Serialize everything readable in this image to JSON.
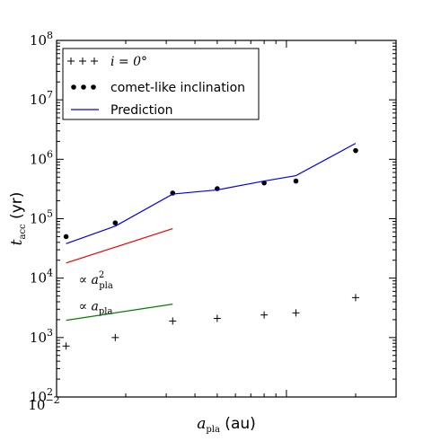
{
  "chart_data": {
    "type": "scatter",
    "xscale": "log",
    "yscale": "log",
    "xlabel": "a_pla (au)",
    "xlabel_main": "a",
    "xlabel_sub": "pla",
    "xlabel_unit": " (au)",
    "ylabel": "t_acc (yr)",
    "ylabel_main": "t",
    "ylabel_sub": "acc",
    "ylabel_unit": " (yr)",
    "xlim": [
      0.01,
      0.3
    ],
    "ylim": [
      100,
      100000000
    ],
    "x_tick_labels": [
      {
        "base": "10",
        "exp": "−2",
        "value": 0.01
      }
    ],
    "y_tick_labels": [
      {
        "base": "10",
        "exp": "2",
        "value": 100
      },
      {
        "base": "10",
        "exp": "3",
        "value": 1000
      },
      {
        "base": "10",
        "exp": "4",
        "value": 10000
      },
      {
        "base": "10",
        "exp": "5",
        "value": 100000
      },
      {
        "base": "10",
        "exp": "6",
        "value": 1000000
      },
      {
        "base": "10",
        "exp": "7",
        "value": 10000000
      },
      {
        "base": "10",
        "exp": "8",
        "value": 100000000
      }
    ],
    "series": [
      {
        "name": "i = 0°",
        "marker": "plus",
        "color": "#000000",
        "x": [
          0.011,
          0.018,
          0.032,
          0.05,
          0.08,
          0.11,
          0.2
        ],
        "y": [
          720,
          1000,
          1900,
          2100,
          2400,
          2600,
          4700
        ]
      },
      {
        "name": "comet-like inclination",
        "marker": "dot",
        "color": "#000000",
        "x": [
          0.011,
          0.018,
          0.032,
          0.05,
          0.08,
          0.11,
          0.2
        ],
        "y": [
          50000,
          85000,
          270000,
          320000,
          400000,
          430000,
          1400000
        ]
      },
      {
        "name": "Prediction",
        "marker": "line",
        "color": "#0000ee",
        "x": [
          0.011,
          0.018,
          0.032,
          0.05,
          0.08,
          0.11,
          0.2
        ],
        "y": [
          38000,
          75000,
          260000,
          305000,
          430000,
          530000,
          1850000
        ]
      }
    ],
    "reference_lines": [
      {
        "label_main": "∝ a",
        "label_sub": "pla",
        "label_sup": "2",
        "color": "#ee0000",
        "x": [
          0.011,
          0.032
        ],
        "y": [
          18000,
          68000
        ]
      },
      {
        "label_main": "∝ a",
        "label_sub": "pla",
        "label_sup": "",
        "color": "#008000",
        "x": [
          0.011,
          0.032
        ],
        "y": [
          1950,
          3650
        ]
      }
    ],
    "legend": {
      "placement": "top-left",
      "entries": [
        {
          "label": "i = 0°",
          "label_main": "i = 0°"
        },
        {
          "label": "comet-like inclination",
          "label_main": "comet-like inclination"
        },
        {
          "label": "Prediction",
          "label_main": "Prediction"
        }
      ]
    },
    "grid": false
  }
}
